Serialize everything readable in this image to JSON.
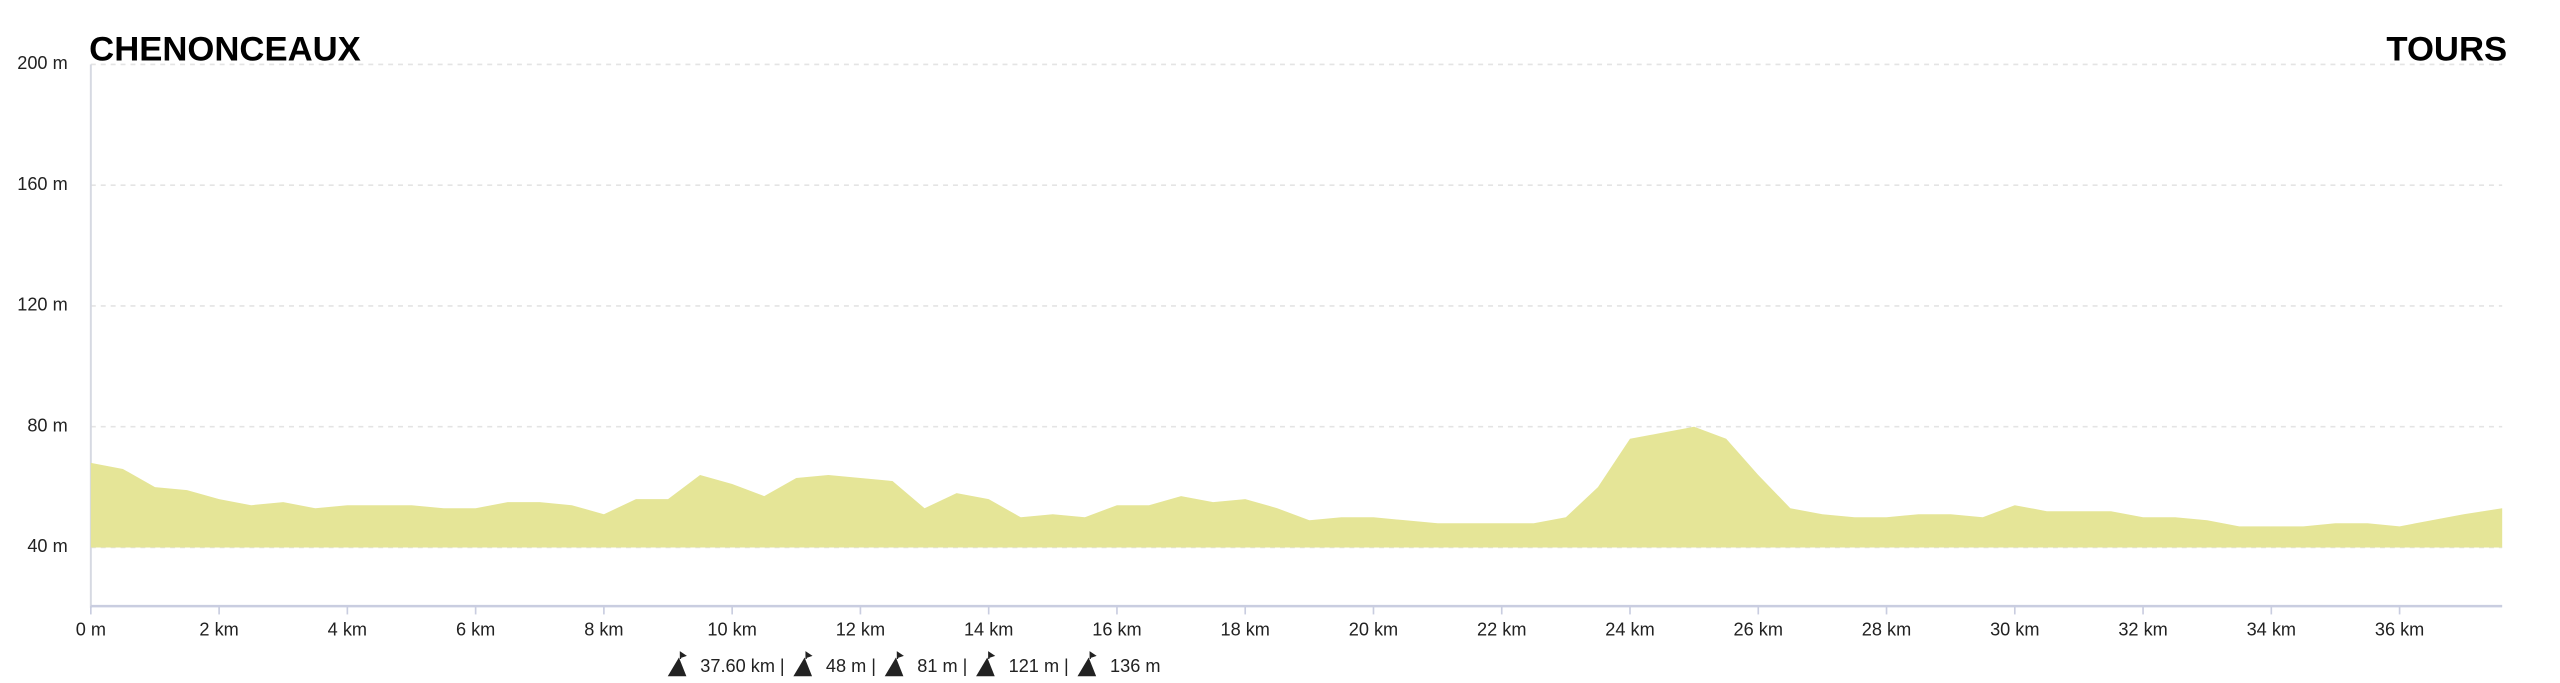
{
  "chart_data": {
    "type": "area",
    "start_label": "CHENONCEAUX",
    "end_label": "TOURS",
    "x": [
      0,
      0.5,
      1,
      1.5,
      2,
      2.5,
      3,
      3.5,
      4,
      4.5,
      5,
      5.5,
      6,
      6.5,
      7,
      7.5,
      8,
      8.5,
      9,
      9.5,
      10,
      10.5,
      11,
      11.5,
      12,
      12.5,
      13,
      13.5,
      14,
      14.5,
      15,
      15.5,
      16,
      16.5,
      17,
      17.5,
      18,
      18.5,
      19,
      19.5,
      20,
      20.5,
      21,
      21.5,
      22,
      22.5,
      23,
      23.5,
      24,
      24.5,
      25,
      25.5,
      26,
      26.5,
      27,
      27.5,
      28,
      28.5,
      29,
      29.5,
      30,
      30.5,
      31,
      31.5,
      32,
      32.5,
      33,
      33.5,
      34,
      34.5,
      35,
      35.5,
      36,
      36.5,
      37,
      37.6
    ],
    "series": [
      {
        "color": "#e5e597",
        "values": [
          68,
          66,
          60,
          59,
          56,
          54,
          55,
          53,
          54,
          54,
          54,
          53,
          53,
          55,
          55,
          54,
          51,
          56,
          56,
          64,
          61,
          57,
          63,
          64,
          63,
          62,
          53,
          58,
          56,
          50,
          51,
          50,
          54,
          54,
          57,
          55,
          56,
          53,
          49,
          50,
          50,
          49,
          48,
          48,
          48,
          48,
          50,
          60,
          76,
          78,
          80,
          76,
          64,
          53,
          51,
          50,
          50,
          51,
          51,
          50,
          54,
          52,
          52,
          52,
          50,
          50,
          49,
          47,
          47,
          47,
          48,
          48,
          47,
          49,
          51,
          53
        ]
      }
    ],
    "xlim": [
      0,
      37.6
    ],
    "ylim": [
      20,
      200
    ],
    "xticks": [
      {
        "value": 0,
        "label": "0 m"
      },
      {
        "value": 2,
        "label": "2 km"
      },
      {
        "value": 4,
        "label": "4 km"
      },
      {
        "value": 6,
        "label": "6 km"
      },
      {
        "value": 8,
        "label": "8 km"
      },
      {
        "value": 10,
        "label": "10 km"
      },
      {
        "value": 12,
        "label": "12 km"
      },
      {
        "value": 14,
        "label": "14 km"
      },
      {
        "value": 16,
        "label": "16 km"
      },
      {
        "value": 18,
        "label": "18 km"
      },
      {
        "value": 20,
        "label": "20 km"
      },
      {
        "value": 22,
        "label": "22 km"
      },
      {
        "value": 24,
        "label": "24 km"
      },
      {
        "value": 26,
        "label": "26 km"
      },
      {
        "value": 28,
        "label": "28 km"
      },
      {
        "value": 30,
        "label": "30 km"
      },
      {
        "value": 32,
        "label": "32 km"
      },
      {
        "value": 34,
        "label": "34 km"
      },
      {
        "value": 36,
        "label": "36 km"
      }
    ],
    "yticks": [
      {
        "value": 40,
        "label": "40 m"
      },
      {
        "value": 80,
        "label": "80 m"
      },
      {
        "value": 120,
        "label": "120 m"
      },
      {
        "value": 160,
        "label": "160 m"
      },
      {
        "value": 200,
        "label": "200 m"
      }
    ],
    "grid": true
  },
  "stats": {
    "items": [
      "37.60 km",
      "48 m",
      "81 m",
      "121 m",
      "136 m"
    ],
    "separator": "|"
  }
}
